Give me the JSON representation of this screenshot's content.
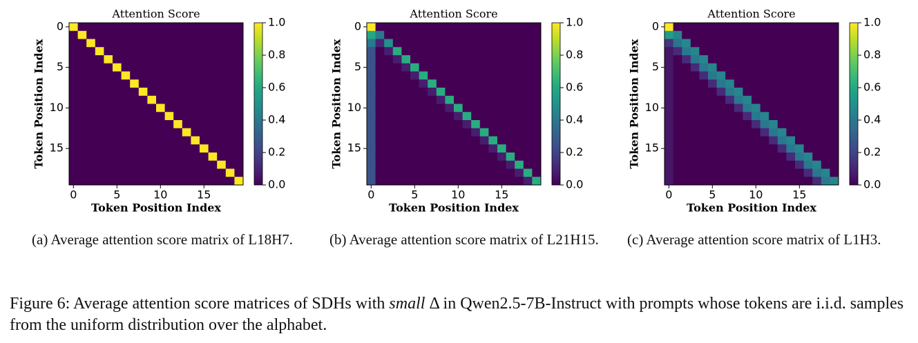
{
  "chart_data": [
    {
      "type": "heatmap",
      "title": "Attention Score",
      "xlabel": "Token Position Index",
      "ylabel": "Token Position Index",
      "xlim": [
        -0.5,
        19.5
      ],
      "ylim": [
        -0.5,
        19.5
      ],
      "y_inverted": true,
      "xticks": [
        0,
        5,
        10,
        15
      ],
      "yticks": [
        0,
        5,
        10,
        15
      ],
      "colormap": "viridis",
      "clim": [
        0,
        1
      ],
      "cticks": [
        {
          "value": 0,
          "label": "0.0"
        },
        0.2,
        0.4,
        0.6,
        0.8,
        {
          "value": 1,
          "label": "1.0"
        }
      ],
      "z": [
        [
          1,
          0,
          0,
          0,
          0,
          0,
          0,
          0,
          0,
          0,
          0,
          0,
          0,
          0,
          0,
          0,
          0,
          0,
          0,
          0
        ],
        [
          0,
          1,
          0,
          0,
          0,
          0,
          0,
          0,
          0,
          0,
          0,
          0,
          0,
          0,
          0,
          0,
          0,
          0,
          0,
          0
        ],
        [
          0,
          0,
          1,
          0,
          0,
          0,
          0,
          0,
          0,
          0,
          0,
          0,
          0,
          0,
          0,
          0,
          0,
          0,
          0,
          0
        ],
        [
          0,
          0,
          0,
          1,
          0,
          0,
          0,
          0,
          0,
          0,
          0,
          0,
          0,
          0,
          0,
          0,
          0,
          0,
          0,
          0
        ],
        [
          0,
          0,
          0,
          0,
          1,
          0,
          0,
          0,
          0,
          0,
          0,
          0,
          0,
          0,
          0,
          0,
          0,
          0,
          0,
          0
        ],
        [
          0,
          0,
          0,
          0,
          0,
          1,
          0,
          0,
          0,
          0,
          0,
          0,
          0,
          0,
          0,
          0,
          0,
          0,
          0,
          0
        ],
        [
          0,
          0,
          0,
          0,
          0,
          0,
          1,
          0,
          0,
          0,
          0,
          0,
          0,
          0,
          0,
          0,
          0,
          0,
          0,
          0
        ],
        [
          0,
          0,
          0,
          0,
          0,
          0,
          0,
          1,
          0,
          0,
          0,
          0,
          0,
          0,
          0,
          0,
          0,
          0,
          0,
          0
        ],
        [
          0,
          0,
          0,
          0,
          0,
          0,
          0,
          0,
          1,
          0,
          0,
          0,
          0,
          0,
          0,
          0,
          0,
          0,
          0,
          0
        ],
        [
          0,
          0,
          0,
          0,
          0,
          0,
          0,
          0,
          0,
          1,
          0,
          0,
          0,
          0,
          0,
          0,
          0,
          0,
          0,
          0
        ],
        [
          0,
          0,
          0,
          0,
          0,
          0,
          0,
          0,
          0,
          0,
          1,
          0,
          0,
          0,
          0,
          0,
          0,
          0,
          0,
          0
        ],
        [
          0,
          0,
          0,
          0,
          0,
          0,
          0,
          0,
          0,
          0,
          0,
          1,
          0,
          0,
          0,
          0,
          0,
          0,
          0,
          0
        ],
        [
          0,
          0,
          0,
          0,
          0,
          0,
          0,
          0,
          0,
          0,
          0,
          0,
          1,
          0,
          0,
          0,
          0,
          0,
          0,
          0
        ],
        [
          0,
          0,
          0,
          0,
          0,
          0,
          0,
          0,
          0,
          0,
          0,
          0,
          0,
          1,
          0,
          0,
          0,
          0,
          0,
          0
        ],
        [
          0,
          0,
          0,
          0,
          0,
          0,
          0,
          0,
          0,
          0,
          0,
          0,
          0,
          0,
          1,
          0,
          0,
          0,
          0,
          0
        ],
        [
          0,
          0,
          0,
          0,
          0,
          0,
          0,
          0,
          0,
          0,
          0,
          0,
          0,
          0,
          0,
          1,
          0,
          0,
          0,
          0
        ],
        [
          0,
          0,
          0,
          0,
          0,
          0,
          0,
          0,
          0,
          0,
          0,
          0,
          0,
          0,
          0,
          0,
          1,
          0,
          0,
          0
        ],
        [
          0,
          0,
          0,
          0,
          0,
          0,
          0,
          0,
          0,
          0,
          0,
          0,
          0,
          0,
          0,
          0,
          0,
          1,
          0,
          0
        ],
        [
          0,
          0,
          0,
          0,
          0,
          0,
          0,
          0,
          0,
          0,
          0,
          0,
          0,
          0,
          0,
          0,
          0,
          0,
          1,
          0
        ],
        [
          0,
          0,
          0,
          0,
          0,
          0,
          0,
          0,
          0,
          0,
          0,
          0,
          0,
          0,
          0,
          0,
          0,
          0,
          0,
          1
        ]
      ]
    },
    {
      "type": "heatmap",
      "title": "Attention Score",
      "xlabel": "Token Position Index",
      "ylabel": "Token Position Index",
      "xlim": [
        -0.5,
        19.5
      ],
      "ylim": [
        -0.5,
        19.5
      ],
      "y_inverted": true,
      "xticks": [
        0,
        5,
        10,
        15
      ],
      "yticks": [
        0,
        5,
        10,
        15
      ],
      "colormap": "viridis",
      "clim": [
        0,
        1
      ],
      "cticks": [
        {
          "value": 0,
          "label": "0.0"
        },
        0.2,
        0.4,
        0.6,
        0.8,
        {
          "value": 1,
          "label": "1.0"
        }
      ],
      "z": [
        [
          1,
          0,
          0,
          0,
          0,
          0,
          0,
          0,
          0,
          0,
          0,
          0,
          0,
          0,
          0,
          0,
          0,
          0,
          0,
          0
        ],
        [
          0.6,
          0.4,
          0,
          0,
          0,
          0,
          0,
          0,
          0,
          0,
          0,
          0,
          0,
          0,
          0,
          0,
          0,
          0,
          0,
          0
        ],
        [
          0.4,
          0.1,
          0.5,
          0,
          0,
          0,
          0,
          0,
          0,
          0,
          0,
          0,
          0,
          0,
          0,
          0,
          0,
          0,
          0,
          0
        ],
        [
          0.25,
          0,
          0.08,
          0.62,
          0,
          0,
          0,
          0,
          0,
          0,
          0,
          0,
          0,
          0,
          0,
          0,
          0,
          0,
          0,
          0
        ],
        [
          0.25,
          0,
          0,
          0.08,
          0.62,
          0,
          0,
          0,
          0,
          0,
          0,
          0,
          0,
          0,
          0,
          0,
          0,
          0,
          0,
          0
        ],
        [
          0.25,
          0,
          0,
          0,
          0.08,
          0.62,
          0,
          0,
          0,
          0,
          0,
          0,
          0,
          0,
          0,
          0,
          0,
          0,
          0,
          0
        ],
        [
          0.25,
          0,
          0,
          0,
          0,
          0.08,
          0.62,
          0,
          0,
          0,
          0,
          0,
          0,
          0,
          0,
          0,
          0,
          0,
          0,
          0
        ],
        [
          0.25,
          0,
          0,
          0,
          0,
          0,
          0.08,
          0.62,
          0,
          0,
          0,
          0,
          0,
          0,
          0,
          0,
          0,
          0,
          0,
          0
        ],
        [
          0.25,
          0,
          0,
          0,
          0,
          0,
          0,
          0.08,
          0.62,
          0,
          0,
          0,
          0,
          0,
          0,
          0,
          0,
          0,
          0,
          0
        ],
        [
          0.25,
          0,
          0,
          0,
          0,
          0,
          0,
          0,
          0.08,
          0.62,
          0,
          0,
          0,
          0,
          0,
          0,
          0,
          0,
          0,
          0
        ],
        [
          0.25,
          0,
          0,
          0,
          0,
          0,
          0,
          0,
          0,
          0.08,
          0.62,
          0,
          0,
          0,
          0,
          0,
          0,
          0,
          0,
          0
        ],
        [
          0.25,
          0,
          0,
          0,
          0,
          0,
          0,
          0,
          0,
          0,
          0.08,
          0.62,
          0,
          0,
          0,
          0,
          0,
          0,
          0,
          0
        ],
        [
          0.25,
          0,
          0,
          0,
          0,
          0,
          0,
          0,
          0,
          0,
          0,
          0.08,
          0.62,
          0,
          0,
          0,
          0,
          0,
          0,
          0
        ],
        [
          0.25,
          0,
          0,
          0,
          0,
          0,
          0,
          0,
          0,
          0,
          0,
          0,
          0.08,
          0.62,
          0,
          0,
          0,
          0,
          0,
          0
        ],
        [
          0.25,
          0,
          0,
          0,
          0,
          0,
          0,
          0,
          0,
          0,
          0,
          0,
          0,
          0.08,
          0.62,
          0,
          0,
          0,
          0,
          0
        ],
        [
          0.25,
          0,
          0,
          0,
          0,
          0,
          0,
          0,
          0,
          0,
          0,
          0,
          0,
          0,
          0.08,
          0.62,
          0,
          0,
          0,
          0
        ],
        [
          0.25,
          0,
          0,
          0,
          0,
          0,
          0,
          0,
          0,
          0,
          0,
          0,
          0,
          0,
          0,
          0.08,
          0.62,
          0,
          0,
          0
        ],
        [
          0.25,
          0,
          0,
          0,
          0,
          0,
          0,
          0,
          0,
          0,
          0,
          0,
          0,
          0,
          0,
          0,
          0.08,
          0.62,
          0,
          0
        ],
        [
          0.25,
          0,
          0,
          0,
          0,
          0,
          0,
          0,
          0,
          0,
          0,
          0,
          0,
          0,
          0,
          0,
          0,
          0.08,
          0.62,
          0
        ],
        [
          0.25,
          0,
          0,
          0,
          0,
          0,
          0,
          0,
          0,
          0,
          0,
          0,
          0,
          0,
          0,
          0,
          0,
          0,
          0.08,
          0.62
        ]
      ]
    },
    {
      "type": "heatmap",
      "title": "Attention Score",
      "xlabel": "Token Position Index",
      "ylabel": "Token Position Index",
      "xlim": [
        -0.5,
        19.5
      ],
      "ylim": [
        -0.5,
        19.5
      ],
      "y_inverted": true,
      "xticks": [
        0,
        5,
        10,
        15
      ],
      "yticks": [
        0,
        5,
        10,
        15
      ],
      "colormap": "viridis",
      "clim": [
        0,
        1
      ],
      "cticks": [
        {
          "value": 0,
          "label": "0.0"
        },
        0.2,
        0.4,
        0.6,
        0.8,
        {
          "value": 1,
          "label": "1.0"
        }
      ],
      "z": [
        [
          1,
          0,
          0,
          0,
          0,
          0,
          0,
          0,
          0,
          0,
          0,
          0,
          0,
          0,
          0,
          0,
          0,
          0,
          0,
          0
        ],
        [
          0.55,
          0.45,
          0,
          0,
          0,
          0,
          0,
          0,
          0,
          0,
          0,
          0,
          0,
          0,
          0,
          0,
          0,
          0,
          0,
          0
        ],
        [
          0.15,
          0.38,
          0.47,
          0,
          0,
          0,
          0,
          0,
          0,
          0,
          0,
          0,
          0,
          0,
          0,
          0,
          0,
          0,
          0,
          0
        ],
        [
          0.06,
          0.12,
          0.4,
          0.45,
          0,
          0,
          0,
          0,
          0,
          0,
          0,
          0,
          0,
          0,
          0,
          0,
          0,
          0,
          0,
          0
        ],
        [
          0.06,
          0,
          0.12,
          0.4,
          0.45,
          0,
          0,
          0,
          0,
          0,
          0,
          0,
          0,
          0,
          0,
          0,
          0,
          0,
          0,
          0
        ],
        [
          0.06,
          0,
          0,
          0.12,
          0.4,
          0.45,
          0,
          0,
          0,
          0,
          0,
          0,
          0,
          0,
          0,
          0,
          0,
          0,
          0,
          0
        ],
        [
          0.06,
          0,
          0,
          0,
          0.12,
          0.4,
          0.45,
          0,
          0,
          0,
          0,
          0,
          0,
          0,
          0,
          0,
          0,
          0,
          0,
          0
        ],
        [
          0.06,
          0,
          0,
          0,
          0,
          0.12,
          0.4,
          0.45,
          0,
          0,
          0,
          0,
          0,
          0,
          0,
          0,
          0,
          0,
          0,
          0
        ],
        [
          0.06,
          0,
          0,
          0,
          0,
          0,
          0.12,
          0.4,
          0.45,
          0,
          0,
          0,
          0,
          0,
          0,
          0,
          0,
          0,
          0,
          0
        ],
        [
          0.06,
          0,
          0,
          0,
          0,
          0,
          0,
          0.12,
          0.4,
          0.45,
          0,
          0,
          0,
          0,
          0,
          0,
          0,
          0,
          0,
          0
        ],
        [
          0.06,
          0,
          0,
          0,
          0,
          0,
          0,
          0,
          0.12,
          0.4,
          0.45,
          0,
          0,
          0,
          0,
          0,
          0,
          0,
          0,
          0
        ],
        [
          0.06,
          0,
          0,
          0,
          0,
          0,
          0,
          0,
          0,
          0.12,
          0.4,
          0.45,
          0,
          0,
          0,
          0,
          0,
          0,
          0,
          0
        ],
        [
          0.06,
          0,
          0,
          0,
          0,
          0,
          0,
          0,
          0,
          0,
          0.12,
          0.4,
          0.45,
          0,
          0,
          0,
          0,
          0,
          0,
          0
        ],
        [
          0.06,
          0,
          0,
          0,
          0,
          0,
          0,
          0,
          0,
          0,
          0,
          0.12,
          0.4,
          0.45,
          0,
          0,
          0,
          0,
          0,
          0
        ],
        [
          0.06,
          0,
          0,
          0,
          0,
          0,
          0,
          0,
          0,
          0,
          0,
          0,
          0.12,
          0.4,
          0.45,
          0,
          0,
          0,
          0,
          0
        ],
        [
          0.06,
          0,
          0,
          0,
          0,
          0,
          0,
          0,
          0,
          0,
          0,
          0,
          0,
          0.12,
          0.4,
          0.45,
          0,
          0,
          0,
          0
        ],
        [
          0.06,
          0,
          0,
          0,
          0,
          0,
          0,
          0,
          0,
          0,
          0,
          0,
          0,
          0,
          0.12,
          0.4,
          0.45,
          0,
          0,
          0
        ],
        [
          0.06,
          0,
          0,
          0,
          0,
          0,
          0,
          0,
          0,
          0,
          0,
          0,
          0,
          0,
          0,
          0.12,
          0.4,
          0.45,
          0,
          0
        ],
        [
          0.06,
          0,
          0,
          0,
          0,
          0,
          0,
          0,
          0,
          0,
          0,
          0,
          0,
          0,
          0,
          0,
          0.12,
          0.4,
          0.45,
          0
        ],
        [
          0.06,
          0,
          0,
          0,
          0,
          0,
          0,
          0,
          0,
          0,
          0,
          0,
          0,
          0,
          0,
          0,
          0,
          0.12,
          0.4,
          0.45
        ]
      ]
    }
  ],
  "captions": [
    "(a) Average attention score matrix of L18H7.",
    "(b) Average attention score matrix of L21H15.",
    "(c) Average attention score matrix of L1H3."
  ],
  "figure_caption": {
    "lead": "Figure 6: Average attention score matrices of SDHs with",
    "emphasis": "small",
    "rest": "Δ in Qwen2.5-7B-Instruct with prompts whose tokens are i.i.d. samples from the uniform distribution over the alphabet."
  }
}
